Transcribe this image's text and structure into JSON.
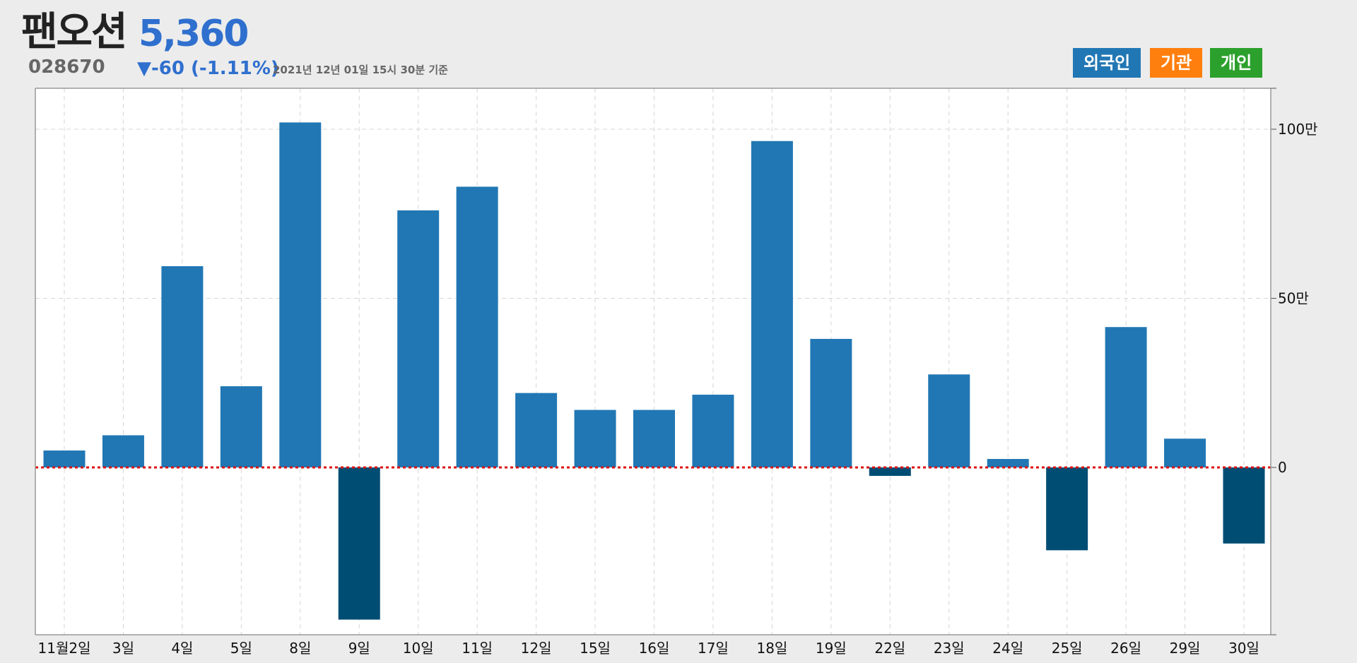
{
  "header": {
    "stock_name": "팬오션",
    "price": "5,360",
    "code": "028670",
    "change": "▼-60 (-1.11%)",
    "as_of": "2021년 12년 01일 15시 30분 기준"
  },
  "legend": [
    {
      "label": "외국인",
      "color": "#2177b4"
    },
    {
      "label": "기관",
      "color": "#ff7f0e"
    },
    {
      "label": "개인",
      "color": "#2ca02c"
    }
  ],
  "chart_data": {
    "type": "bar",
    "categories": [
      "11월2일",
      "3일",
      "4일",
      "5일",
      "8일",
      "9일",
      "10일",
      "11일",
      "12일",
      "15일",
      "16일",
      "17일",
      "18일",
      "19일",
      "22일",
      "23일",
      "24일",
      "25일",
      "26일",
      "29일",
      "30일"
    ],
    "values": [
      50000,
      95000,
      595000,
      240000,
      1020000,
      -450000,
      760000,
      830000,
      220000,
      170000,
      170000,
      215000,
      965000,
      380000,
      -25000,
      275000,
      25000,
      -245000,
      415000,
      85000,
      -225000
    ],
    "ylim": [
      -500000,
      1120000
    ],
    "yticks": [
      0,
      500000,
      1000000
    ],
    "ytick_labels": [
      "0",
      "50만",
      "100만"
    ],
    "positive_color": "#2177b4",
    "negative_color": "#004d74",
    "zero_line_color": "#dd1111",
    "grid": true
  }
}
